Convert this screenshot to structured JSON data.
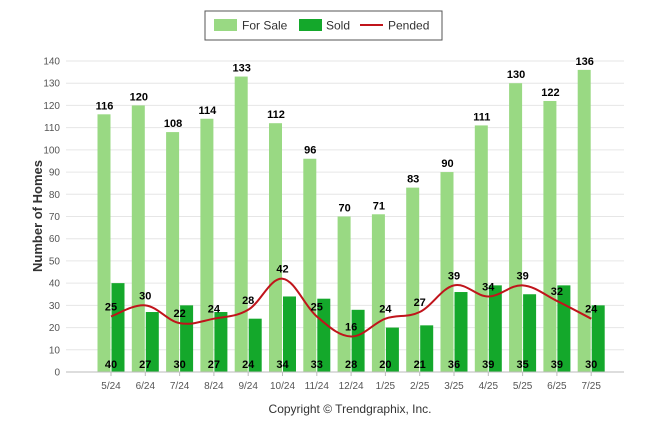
{
  "chart_data": {
    "type": "bar",
    "title": "",
    "ylabel": "Number of Homes",
    "xlabel": "",
    "ylim": [
      0,
      140
    ],
    "yticks": [
      0,
      10,
      20,
      30,
      40,
      50,
      60,
      70,
      80,
      90,
      100,
      110,
      120,
      130,
      140
    ],
    "grid": true,
    "legend_position": "top-center",
    "categories": [
      "5/24",
      "6/24",
      "7/24",
      "8/24",
      "9/24",
      "10/24",
      "11/24",
      "12/24",
      "1/25",
      "2/25",
      "3/25",
      "4/25",
      "5/25",
      "6/25",
      "7/25"
    ],
    "series": [
      {
        "name": "For Sale",
        "kind": "bar",
        "color": "#99d983",
        "values": [
          116,
          120,
          108,
          114,
          133,
          112,
          96,
          70,
          71,
          83,
          90,
          111,
          130,
          122,
          136
        ]
      },
      {
        "name": "Sold",
        "kind": "bar",
        "color": "#14a82b",
        "values": [
          40,
          27,
          30,
          27,
          24,
          34,
          33,
          28,
          20,
          21,
          36,
          39,
          35,
          39,
          30
        ]
      },
      {
        "name": "Pended",
        "kind": "line",
        "color": "#c0141b",
        "values": [
          25,
          30,
          22,
          24,
          28,
          42,
          25,
          16,
          24,
          27,
          39,
          34,
          39,
          32,
          24
        ]
      }
    ],
    "footer": "Copyright © Trendgraphix, Inc."
  }
}
